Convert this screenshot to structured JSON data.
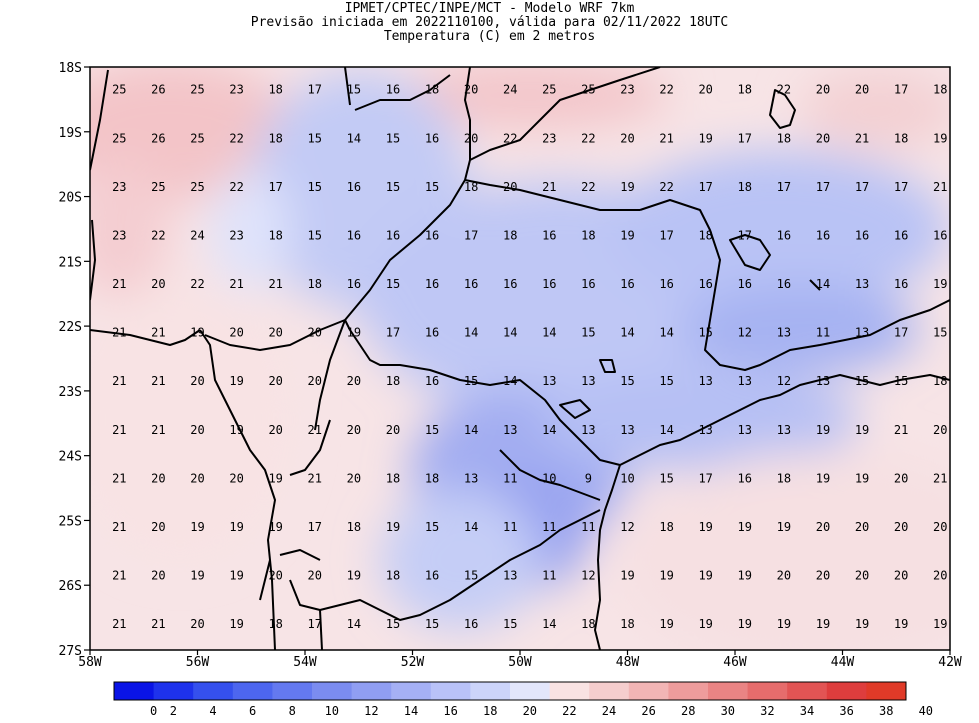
{
  "titles": {
    "line1": "IPMET/CPTEC/INPE/MCT - Modelo WRF 7km",
    "line2": "Previsão iniciada em 2022110100, válida para 02/11/2022 18UTC",
    "line3": "Temperatura (C) em 2 metros"
  },
  "axes": {
    "lat_labels": [
      "18S",
      "19S",
      "20S",
      "21S",
      "22S",
      "23S",
      "24S",
      "25S",
      "26S",
      "27S"
    ],
    "lon_labels": [
      "58W",
      "56W",
      "54W",
      "52W",
      "50W",
      "48W",
      "46W",
      "44W",
      "42W"
    ],
    "lon_range": [
      -58,
      -42
    ],
    "lat_range": [
      -27,
      -18
    ]
  },
  "colorbar": {
    "ticks": [
      "0",
      "2",
      "4",
      "6",
      "8",
      "10",
      "12",
      "14",
      "16",
      "18",
      "20",
      "22",
      "24",
      "26",
      "28",
      "30",
      "32",
      "34",
      "36",
      "38",
      "40"
    ],
    "colors": [
      "#0a14e6",
      "#1e32ec",
      "#3550ee",
      "#4d66ef",
      "#6479f0",
      "#7b8cf0",
      "#909ef3",
      "#a5b0f5",
      "#b9c2f8",
      "#ccd4fa",
      "#e3e6fb",
      "#f9e3e3",
      "#f5cdcd",
      "#f2b5b5",
      "#ee9c9c",
      "#ea8484",
      "#e66c6c",
      "#e25454",
      "#de3d3d",
      "#e03a28"
    ]
  },
  "grid_temperatures": [
    [
      25,
      26,
      25,
      23,
      18,
      17,
      15,
      16,
      18,
      20,
      24,
      25,
      25,
      23,
      22,
      20,
      18,
      22,
      20,
      20,
      17,
      18
    ],
    [
      25,
      26,
      25,
      22,
      18,
      15,
      14,
      15,
      16,
      20,
      22,
      23,
      22,
      20,
      21,
      19,
      17,
      18,
      20,
      21,
      18,
      19
    ],
    [
      23,
      25,
      25,
      22,
      17,
      15,
      16,
      15,
      15,
      18,
      20,
      21,
      22,
      19,
      22,
      17,
      18,
      17,
      17,
      17,
      17,
      21
    ],
    [
      23,
      22,
      24,
      23,
      18,
      15,
      16,
      16,
      16,
      17,
      18,
      16,
      18,
      19,
      17,
      18,
      17,
      16,
      16,
      16,
      16,
      16
    ],
    [
      21,
      20,
      22,
      21,
      21,
      18,
      16,
      15,
      16,
      16,
      16,
      16,
      16,
      16,
      16,
      16,
      16,
      16,
      14,
      13,
      16,
      19
    ],
    [
      21,
      21,
      19,
      20,
      20,
      20,
      19,
      17,
      16,
      14,
      14,
      14,
      15,
      14,
      14,
      15,
      12,
      13,
      11,
      13,
      17,
      15
    ],
    [
      21,
      21,
      20,
      19,
      20,
      20,
      20,
      18,
      16,
      15,
      14,
      13,
      13,
      15,
      15,
      13,
      13,
      12,
      13,
      15,
      15,
      18
    ],
    [
      21,
      21,
      20,
      19,
      20,
      21,
      20,
      20,
      15,
      14,
      13,
      14,
      13,
      13,
      14,
      13,
      13,
      13,
      19,
      19,
      21,
      20
    ],
    [
      21,
      20,
      20,
      20,
      19,
      21,
      20,
      18,
      18,
      13,
      11,
      10,
      9,
      10,
      15,
      17,
      16,
      18,
      19,
      19,
      20,
      21
    ],
    [
      21,
      20,
      19,
      19,
      19,
      17,
      18,
      19,
      15,
      14,
      11,
      11,
      11,
      12,
      18,
      19,
      19,
      19,
      20,
      20,
      20,
      20
    ],
    [
      21,
      20,
      19,
      19,
      20,
      20,
      19,
      18,
      16,
      15,
      13,
      11,
      12,
      19,
      19,
      19,
      19,
      20,
      20,
      20,
      20,
      20
    ],
    [
      21,
      21,
      20,
      19,
      18,
      17,
      14,
      15,
      15,
      16,
      15,
      14,
      18,
      18,
      19,
      19,
      19,
      19,
      19,
      19,
      19,
      19
    ]
  ]
}
